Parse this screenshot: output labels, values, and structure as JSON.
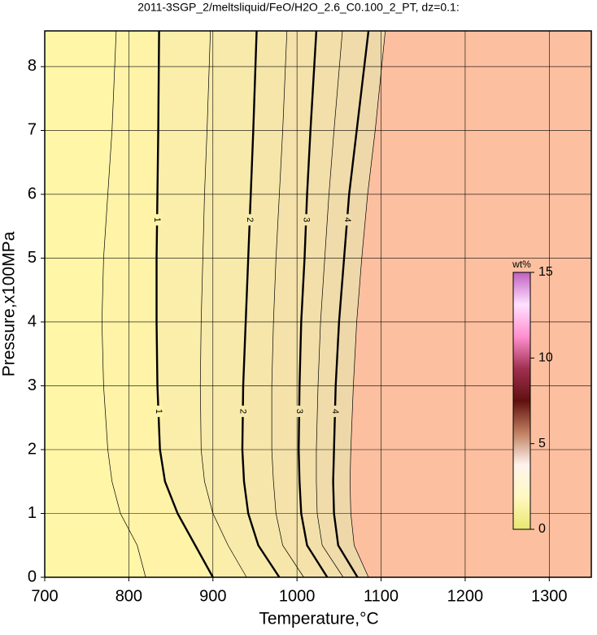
{
  "chart_data": {
    "type": "contour",
    "title": "2011-3SGP_2/meltsliquid/FeO/H2O_2.6_C0.100_2_PT, dz=0.1:",
    "x_label": "Temperature,°C",
    "y_label": "Pressure,x100MPa",
    "xlim": [
      700,
      1350
    ],
    "xticks": [
      700,
      800,
      900,
      1000,
      1100,
      1200,
      1300
    ],
    "ylim": [
      0,
      8.56
    ],
    "yticks": [
      0,
      1,
      2,
      3,
      4,
      5,
      6,
      7,
      8
    ],
    "grid": true,
    "outside_color": "#fcc0a0",
    "pressures": [
      0,
      0.5,
      1,
      1.5,
      2,
      3,
      4,
      5,
      6,
      7,
      8.56
    ],
    "series": [
      {
        "x": [
          820,
          810,
          790,
          780,
          775,
          770,
          768,
          770,
          775,
          780,
          785
        ],
        "fill": "#fff6a8"
      },
      {
        "name": "1",
        "x": [
          900,
          879,
          858,
          843,
          837,
          834,
          833,
          833,
          834,
          835,
          836
        ],
        "fill": "#fff3a8"
      },
      {
        "x": [
          940,
          918,
          900,
          890,
          886,
          885,
          886,
          888,
          890,
          893,
          897
        ],
        "fill": "#fbeeaa"
      },
      {
        "name": "2",
        "x": [
          979,
          954,
          942,
          937,
          935,
          936,
          939,
          942,
          945,
          948,
          952
        ],
        "fill": "#f8eaaa"
      },
      {
        "x": [
          1008,
          983,
          975,
          972,
          970,
          970,
          972,
          975,
          979,
          983,
          988
        ],
        "fill": "#f6e6aa"
      },
      {
        "name": "3",
        "x": [
          1036,
          1012,
          1005,
          1003,
          1002,
          1003,
          1005,
          1009,
          1012,
          1016,
          1023
        ],
        "fill": "#f4e2aa"
      },
      {
        "x": [
          1055,
          1030,
          1024,
          1023,
          1023,
          1025,
          1028,
          1033,
          1038,
          1044,
          1054
        ],
        "fill": "#f2dfaa"
      },
      {
        "name": "4",
        "x": [
          1072,
          1049,
          1044,
          1043,
          1044,
          1046,
          1050,
          1056,
          1062,
          1071,
          1085
        ],
        "fill": "#f0dcaa"
      },
      {
        "x": [
          1085,
          1068,
          1064,
          1063,
          1064,
          1067,
          1071,
          1077,
          1084,
          1093,
          1105
        ],
        "fill": "#eed8aa"
      }
    ],
    "colorbar": {
      "label": "wt%",
      "lim": [
        0,
        15
      ],
      "ticks": [
        0,
        5,
        10,
        15
      ],
      "colormap": [
        "#e8e870",
        "#fff8c0",
        "#fff4ee",
        "#c08060",
        "#601010",
        "#a03050",
        "#ff90d0",
        "#ffe0ff",
        "#c060c0"
      ]
    }
  }
}
